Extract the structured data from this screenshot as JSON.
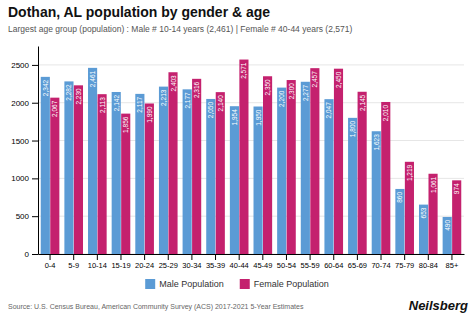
{
  "chart_data": {
    "type": "bar",
    "title": "Dothan, AL population by gender & age",
    "subtitle": "Largest age group (population) : Male # 10-14 years (2,461) | Female # 40-44 years (2,571)",
    "annotations": [
      "Source: U.S. Census Bureau, American Community Survey (ACS) 2017-2021 5-Year Estimates",
      "Neilsberg"
    ],
    "categories": [
      "0-4",
      "5-9",
      "10-14",
      "15-19",
      "20-24",
      "25-29",
      "30-34",
      "35-39",
      "40-44",
      "45-49",
      "50-54",
      "55-59",
      "60-64",
      "65-69",
      "70-74",
      "75-79",
      "80-84",
      "85+"
    ],
    "series": [
      {
        "name": "Male Population",
        "color": "#5B9BD5",
        "values": [
          2342,
          2282,
          2461,
          2142,
          2117,
          2213,
          2177,
          2050,
          1954,
          1950,
          2200,
          2277,
          2047,
          1800,
          1623,
          860,
          653,
          490
        ],
        "value_labels": [
          "2,342",
          "2,282",
          "2,461",
          "2,142",
          "2,117",
          "2,213",
          "2,177",
          "2,050",
          "1,954",
          "1,950",
          "2,200",
          "2,277",
          "2,047",
          "1,800",
          "1,623",
          "860",
          "653",
          "490"
        ]
      },
      {
        "name": "Female Population",
        "color": "#C4216E",
        "values": [
          2067,
          2230,
          2113,
          1856,
          1990,
          2403,
          2316,
          2140,
          2571,
          2350,
          2300,
          2457,
          2450,
          2145,
          2010,
          1219,
          1061,
          974
        ],
        "value_labels": [
          "2,067",
          "2,230",
          "2,113",
          "1,856",
          "1,990",
          "2,403",
          "2,316",
          "2,140",
          "2,571",
          "2,350",
          "2,300",
          "2,457",
          "2,450",
          "2,145",
          "2,010",
          "1,219",
          "1,061",
          "974"
        ]
      }
    ],
    "ylim": [
      0,
      2750
    ],
    "yticks": [
      0,
      500,
      1000,
      1500,
      2000,
      2500
    ],
    "grid": true,
    "legend": "bottom",
    "data_labels": true
  }
}
